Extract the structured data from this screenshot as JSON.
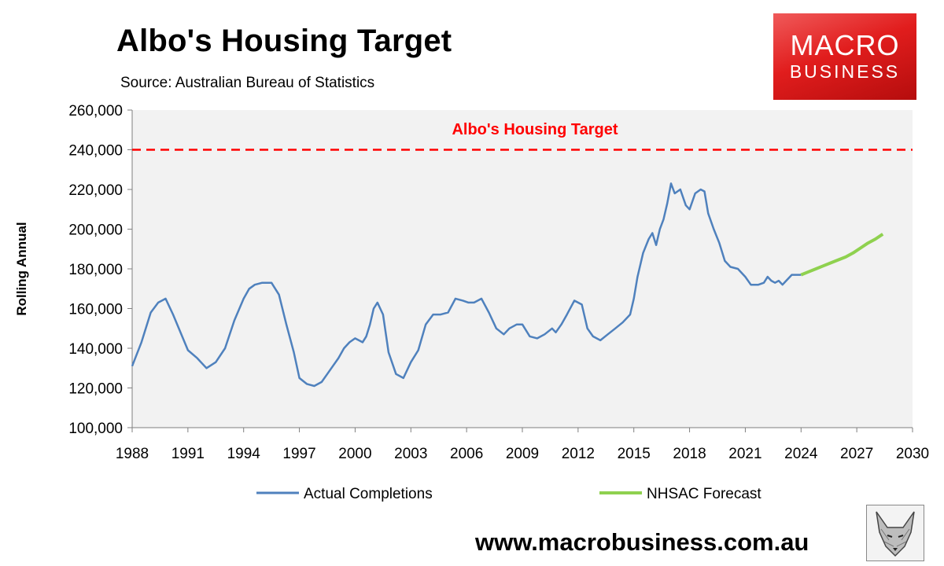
{
  "title": "Albo's Housing Target",
  "subtitle": "Source: Australian Bureau of Statistics",
  "logo": {
    "line1": "MACRO",
    "line2": "BUSINESS"
  },
  "url": "www.macrobusiness.com.au",
  "colors": {
    "actual": "#4f81bd",
    "forecast": "#8fd14f",
    "target": "#ff0000",
    "plot_bg": "#f2f2f2"
  },
  "chart_data": {
    "type": "line",
    "title": "Albo's Housing Target",
    "subtitle": "Source: Australian Bureau of Statistics",
    "xlabel": "",
    "ylabel": "Rolling Annual",
    "xlim": [
      1988,
      2030
    ],
    "ylim": [
      100000,
      260000
    ],
    "x_ticks": [
      "1988",
      "1991",
      "1994",
      "1997",
      "2000",
      "2003",
      "2006",
      "2009",
      "2012",
      "2015",
      "2018",
      "2021",
      "2024",
      "2027",
      "2030"
    ],
    "y_ticks": [
      "100,000",
      "120,000",
      "140,000",
      "160,000",
      "180,000",
      "200,000",
      "220,000",
      "240,000",
      "260,000"
    ],
    "grid": false,
    "legend_position": "bottom",
    "target": {
      "label": "Albo's Housing Target",
      "value": 240000
    },
    "series": [
      {
        "name": "Actual Completions",
        "x": [
          1988.0,
          1988.5,
          1989.0,
          1989.4,
          1989.8,
          1990.2,
          1991.0,
          1991.5,
          1992.0,
          1992.5,
          1993.0,
          1993.5,
          1994.0,
          1994.3,
          1994.6,
          1995.0,
          1995.5,
          1995.9,
          1996.3,
          1996.7,
          1997.0,
          1997.4,
          1997.8,
          1998.2,
          1998.5,
          1998.8,
          1999.1,
          1999.4,
          1999.7,
          2000.0,
          2000.2,
          2000.4,
          2000.6,
          2000.8,
          2001.0,
          2001.2,
          2001.5,
          2001.8,
          2002.2,
          2002.6,
          2003.0,
          2003.4,
          2003.8,
          2004.2,
          2004.6,
          2005.0,
          2005.4,
          2005.8,
          2006.1,
          2006.4,
          2006.8,
          2007.2,
          2007.6,
          2008.0,
          2008.3,
          2008.7,
          2009.0,
          2009.4,
          2009.8,
          2010.2,
          2010.6,
          2010.8,
          2011.1,
          2011.4,
          2011.8,
          2012.2,
          2012.5,
          2012.8,
          2013.2,
          2013.6,
          2014.0,
          2014.4,
          2014.8,
          2015.0,
          2015.2,
          2015.5,
          2015.8,
          2016.0,
          2016.2,
          2016.4,
          2016.6,
          2016.8,
          2017.0,
          2017.2,
          2017.5,
          2017.8,
          2018.0,
          2018.3,
          2018.6,
          2018.8,
          2019.0,
          2019.3,
          2019.6,
          2019.9,
          2020.2,
          2020.6,
          2021.0,
          2021.3,
          2021.7,
          2022.0,
          2022.2,
          2022.4,
          2022.6,
          2022.8,
          2023.0,
          2023.2,
          2023.5,
          2023.8,
          2024.0
        ],
        "values": [
          131000,
          143000,
          158000,
          163000,
          165000,
          157000,
          139000,
          135000,
          130000,
          133000,
          140000,
          154000,
          165000,
          170000,
          172000,
          173000,
          173000,
          167000,
          152000,
          138000,
          125000,
          122000,
          121000,
          123000,
          127000,
          131000,
          135000,
          140000,
          143000,
          145000,
          144000,
          143000,
          146000,
          152000,
          160000,
          163000,
          157000,
          138000,
          127000,
          125000,
          133000,
          139000,
          152000,
          157000,
          157000,
          158000,
          165000,
          164000,
          163000,
          163000,
          165000,
          158000,
          150000,
          147000,
          150000,
          152000,
          152000,
          146000,
          145000,
          147000,
          150000,
          148000,
          152000,
          157000,
          164000,
          162000,
          150000,
          146000,
          144000,
          147000,
          150000,
          153000,
          157000,
          165000,
          176000,
          188000,
          195000,
          198000,
          192000,
          200000,
          205000,
          213000,
          223000,
          218000,
          220000,
          212000,
          210000,
          218000,
          220000,
          219000,
          208000,
          200000,
          193000,
          184000,
          181000,
          180000,
          176000,
          172000,
          172000,
          173000,
          176000,
          174000,
          173000,
          174000,
          172000,
          174000,
          177000,
          177000,
          177000
        ]
      },
      {
        "name": "NHSAC Forecast",
        "x": [
          2024.0,
          2024.4,
          2024.8,
          2025.2,
          2025.6,
          2026.0,
          2026.4,
          2026.8,
          2027.2,
          2027.6,
          2028.0,
          2028.4
        ],
        "values": [
          177000,
          178500,
          180000,
          181500,
          183000,
          184500,
          186000,
          188000,
          190500,
          193000,
          195000,
          197500
        ]
      }
    ]
  }
}
